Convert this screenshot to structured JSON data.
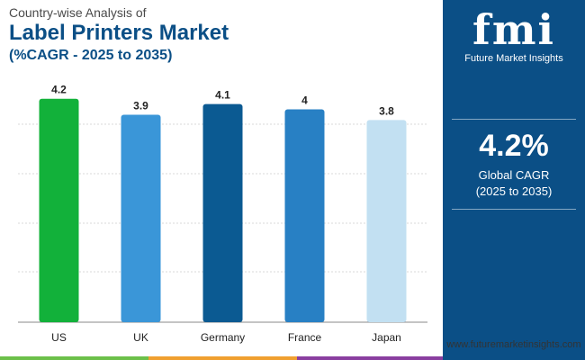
{
  "header": {
    "line1": "Country-wise Analysis of",
    "line2": "Label Printers Market",
    "line3": "(%CAGR - 2025 to 2035)"
  },
  "chart_data": {
    "type": "bar",
    "categories": [
      "US",
      "UK",
      "Germany",
      "France",
      "Japan"
    ],
    "values": [
      4.2,
      3.9,
      4.1,
      4.0,
      3.8
    ],
    "value_labels": [
      "4.2",
      "3.9",
      "4.1",
      "4",
      "3.8"
    ],
    "bar_colors": [
      "#12b13a",
      "#3a96d8",
      "#0b5a92",
      "#2880c4",
      "#c2e0f2"
    ],
    "title": "Label Printers Market",
    "ylim": [
      0,
      4.5
    ],
    "grid": true
  },
  "side_panel": {
    "logo_text": "fmi",
    "logo_subtext": "Future Market Insights",
    "headline_value": "4.2%",
    "headline_label": "Global CAGR",
    "headline_period": "(2025 to 2035)",
    "website": "www.futuremarketinsights.com",
    "background_color": "#0b4f86"
  },
  "footer_stripe_colors": [
    "#6cc04a",
    "#f0a030",
    "#8a3ea0",
    "#0b4f86"
  ]
}
